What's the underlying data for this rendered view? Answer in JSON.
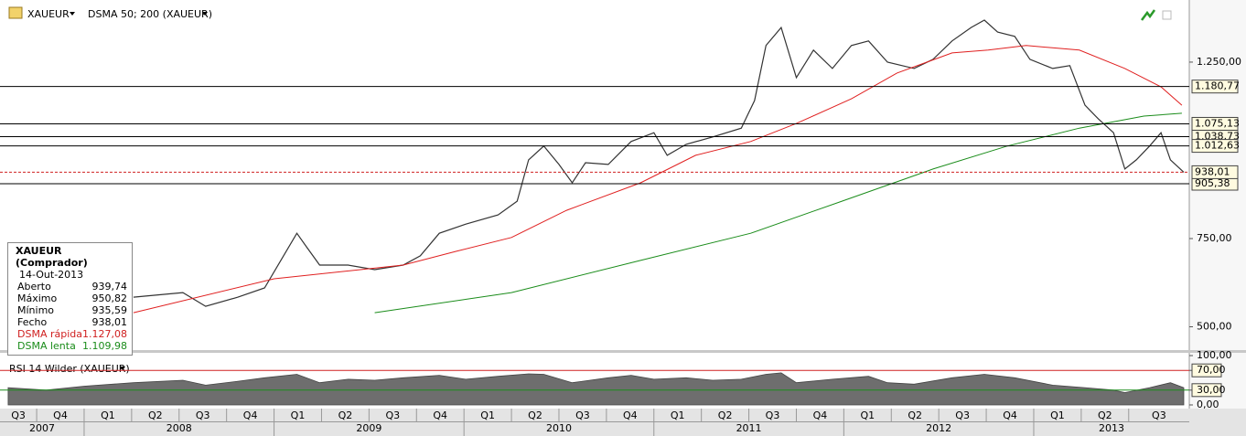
{
  "chart_data": [
    {
      "type": "line",
      "title": "XAUEUR",
      "subtitle": "DSMA 50; 200 (XAUEUR)",
      "xlim": [
        2007.557,
        2013.819
      ],
      "ylim": [
        434,
        1426
      ],
      "xticks": [
        {
          "value": 2007.5,
          "label": "Q3"
        },
        {
          "value": 2007.75,
          "label": "Q4"
        },
        {
          "value": 2008,
          "label": "Q1"
        },
        {
          "value": 2008.25,
          "label": "Q2"
        },
        {
          "value": 2008.5,
          "label": "Q3"
        },
        {
          "value": 2008.75,
          "label": "Q4"
        },
        {
          "value": 2009,
          "label": "Q1"
        },
        {
          "value": 2009.25,
          "label": "Q2"
        },
        {
          "value": 2009.5,
          "label": "Q3"
        },
        {
          "value": 2009.75,
          "label": "Q4"
        },
        {
          "value": 2010,
          "label": "Q1"
        },
        {
          "value": 2010.25,
          "label": "Q2"
        },
        {
          "value": 2010.5,
          "label": "Q3"
        },
        {
          "value": 2010.75,
          "label": "Q4"
        },
        {
          "value": 2011,
          "label": "Q1"
        },
        {
          "value": 2011.25,
          "label": "Q2"
        },
        {
          "value": 2011.5,
          "label": "Q3"
        },
        {
          "value": 2011.75,
          "label": "Q4"
        },
        {
          "value": 2012,
          "label": "Q1"
        },
        {
          "value": 2012.25,
          "label": "Q2"
        },
        {
          "value": 2012.5,
          "label": "Q3"
        },
        {
          "value": 2012.75,
          "label": "Q4"
        },
        {
          "value": 2013,
          "label": "Q1"
        },
        {
          "value": 2013.25,
          "label": "Q2"
        },
        {
          "value": 2013.5,
          "label": "Q3"
        }
      ],
      "xticks_major": [
        {
          "value": 2007.5,
          "label": "2007"
        },
        {
          "value": 2008,
          "label": "2008"
        },
        {
          "value": 2009,
          "label": "2009"
        },
        {
          "value": 2010,
          "label": "2010"
        },
        {
          "value": 2011,
          "label": "2011"
        },
        {
          "value": 2012,
          "label": "2012"
        },
        {
          "value": 2013,
          "label": "2013"
        }
      ],
      "yticks": [
        {
          "value": 1250,
          "label": "1.250,00"
        },
        {
          "value": 750,
          "label": "750,00"
        },
        {
          "value": 500,
          "label": "500,00"
        }
      ],
      "grid": false,
      "series": [
        {
          "color": "#333333",
          "width": 1.2,
          "x": [
            2008.26,
            2008.52,
            2008.64,
            2008.81,
            2008.95,
            2009.05,
            2009.12,
            2009.17,
            2009.24,
            2009.39,
            2009.53,
            2009.68,
            2009.77,
            2009.87,
            2010.01,
            2010.18,
            2010.28,
            2010.34,
            2010.42,
            2010.5,
            2010.57,
            2010.64,
            2010.76,
            2010.88,
            2011.0,
            2011.07,
            2011.17,
            2011.31,
            2011.46,
            2011.53,
            2011.59,
            2011.67,
            2011.75,
            2011.84,
            2011.94,
            2012.04,
            2012.13,
            2012.23,
            2012.37,
            2012.47,
            2012.57,
            2012.67,
            2012.74,
            2012.81,
            2012.9,
            2012.98,
            2013.1,
            2013.19,
            2013.27,
            2013.34,
            2013.42,
            2013.48,
            2013.54,
            2013.61,
            2013.67,
            2013.72,
            2013.79
          ],
          "values": [
            584,
            597,
            558,
            584,
            610,
            701,
            765,
            727,
            675,
            675,
            662,
            675,
            701,
            765,
            791,
            817,
            856,
            973,
            1012,
            960,
            908,
            965,
            960,
            1025,
            1050,
            986,
            1017,
            1038,
            1063,
            1141,
            1297,
            1348,
            1206,
            1284,
            1232,
            1297,
            1310,
            1250,
            1232,
            1258,
            1310,
            1348,
            1369,
            1335,
            1323,
            1258,
            1232,
            1240,
            1128,
            1089,
            1050,
            947,
            973,
            1012,
            1050,
            973,
            938
          ]
        },
        {
          "color": "#e02020",
          "width": 1,
          "x": [
            2008.26,
            2009.0,
            2009.68,
            2009.96,
            2010.25,
            2010.54,
            2010.93,
            2011.22,
            2011.51,
            2011.75,
            2012.04,
            2012.28,
            2012.57,
            2012.76,
            2012.96,
            2013.24,
            2013.48,
            2013.67,
            2013.78
          ],
          "values": [
            540,
            636,
            675,
            714,
            753,
            830,
            908,
            986,
            1025,
            1076,
            1146,
            1219,
            1276,
            1284,
            1297,
            1284,
            1232,
            1180,
            1128
          ]
        },
        {
          "color": "#1a8c1a",
          "width": 1,
          "x": [
            2009.53,
            2010.25,
            2010.93,
            2011.51,
            2011.99,
            2012.47,
            2012.86,
            2013.24,
            2013.58,
            2013.78
          ],
          "values": [
            540,
            597,
            688,
            765,
            856,
            947,
            1012,
            1063,
            1097,
            1105
          ]
        }
      ],
      "levels": {
        "values": [
          1180.77,
          1075.13,
          1038.73,
          1012.63,
          905.38,
          938.01
        ],
        "value_labels": [
          "1.180,77",
          "1.075,13",
          "1.038,73",
          "1.012,63",
          "905,38",
          "938,01"
        ],
        "colors": [
          "#000000",
          "#000000",
          "#000000",
          "#000000",
          "#000000",
          "#d02020"
        ],
        "dashed": [
          false,
          false,
          false,
          false,
          false,
          true
        ]
      }
    },
    {
      "type": "area",
      "title": "RSI 14 Wilder (XAUEUR)",
      "xlim": [
        2007.557,
        2013.819
      ],
      "ylim": [
        -7.4,
        105.6
      ],
      "yticks": [
        {
          "value": 100,
          "label": "100,00"
        },
        {
          "value": 70,
          "label": "70,00"
        },
        {
          "value": 30,
          "label": "30,00"
        },
        {
          "value": 0,
          "label": "0,00"
        }
      ],
      "ref_lines": [
        {
          "value": 70,
          "color": "#d02020"
        },
        {
          "value": 30,
          "color": "#1a8c1a"
        }
      ],
      "series": [
        {
          "color": "#6e6e6e",
          "x": [
            2007.6,
            2007.8,
            2008.0,
            2008.26,
            2008.52,
            2008.64,
            2008.81,
            2008.95,
            2009.12,
            2009.24,
            2009.39,
            2009.53,
            2009.68,
            2009.87,
            2010.01,
            2010.18,
            2010.34,
            2010.42,
            2010.57,
            2010.76,
            2010.88,
            2011.0,
            2011.17,
            2011.31,
            2011.46,
            2011.59,
            2011.67,
            2011.75,
            2011.94,
            2012.13,
            2012.23,
            2012.37,
            2012.57,
            2012.74,
            2012.9,
            2013.1,
            2013.27,
            2013.42,
            2013.48,
            2013.61,
            2013.72,
            2013.79
          ],
          "values": [
            35,
            30,
            38,
            45,
            50,
            40,
            48,
            55,
            62,
            45,
            52,
            50,
            55,
            60,
            52,
            58,
            63,
            62,
            45,
            55,
            60,
            52,
            55,
            50,
            52,
            62,
            65,
            45,
            52,
            58,
            45,
            42,
            55,
            62,
            55,
            40,
            35,
            30,
            25,
            35,
            45,
            35
          ]
        }
      ]
    }
  ],
  "info_box": {
    "title": "XAUEUR (Comprador)",
    "date": "14-Out-2013",
    "rows": [
      {
        "label": "Aberto",
        "value": "939,74"
      },
      {
        "label": "Máximo",
        "value": "950,82"
      },
      {
        "label": "Mínimo",
        "value": "935,59"
      },
      {
        "label": "Fecho",
        "value": "938,01"
      },
      {
        "label": "DSMA rápida",
        "value": "1.127,08"
      },
      {
        "label": "DSMA lenta",
        "value": "1.109,98"
      }
    ]
  }
}
